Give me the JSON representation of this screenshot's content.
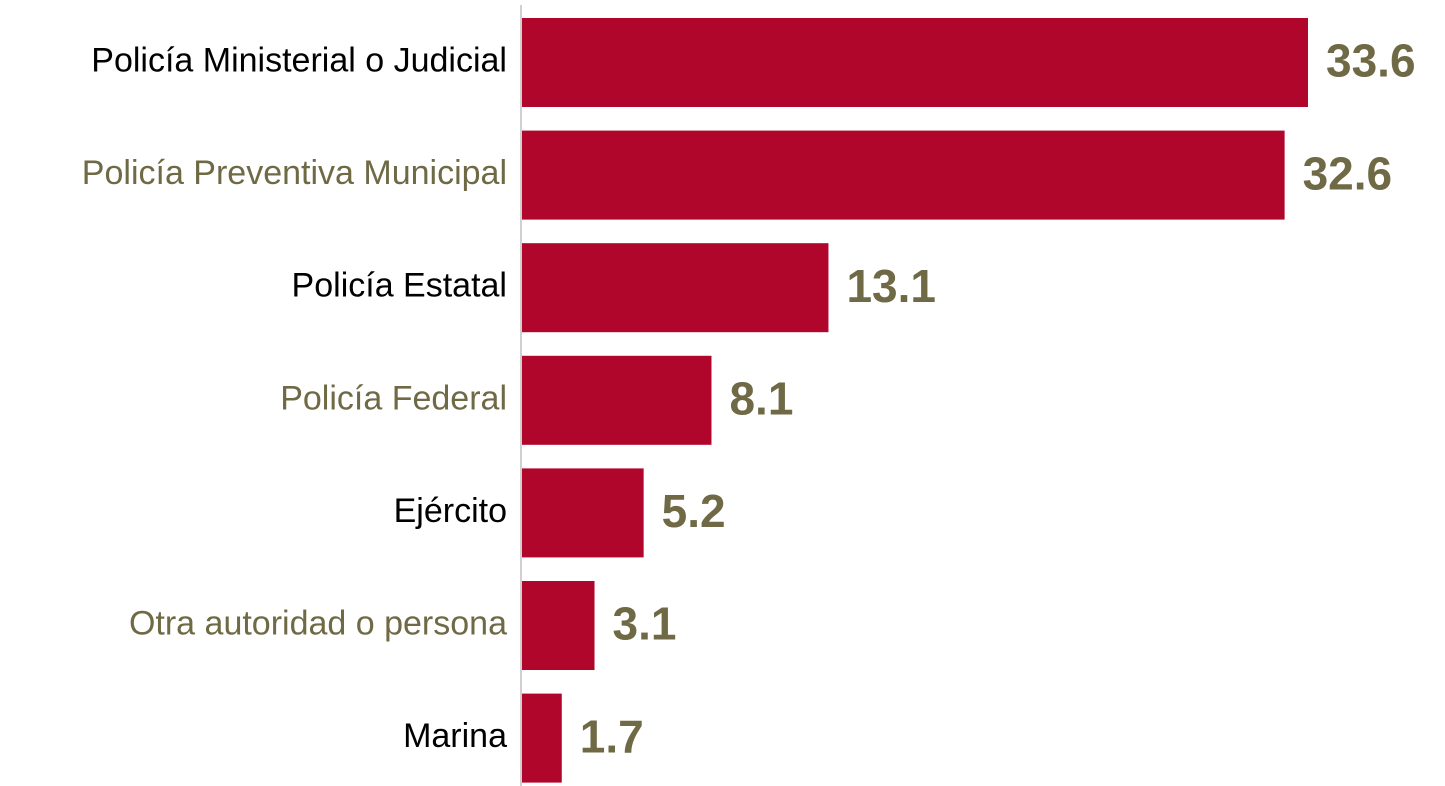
{
  "chart_data": {
    "type": "bar",
    "orientation": "horizontal",
    "categories": [
      "Policía Ministerial o Judicial",
      "Policía Preventiva Municipal",
      "Policía Estatal",
      "Policía Federal",
      "Ejército",
      "Otra autoridad o persona",
      "Marina"
    ],
    "values": [
      33.6,
      32.6,
      13.1,
      8.1,
      5.2,
      3.1,
      1.7
    ],
    "color": "#b0062c",
    "category_label_colors": [
      "#000000",
      "#6f6a45",
      "#000000",
      "#6f6a45",
      "#000000",
      "#6f6a45",
      "#000000"
    ],
    "value_label_color": "#6f6a45"
  }
}
